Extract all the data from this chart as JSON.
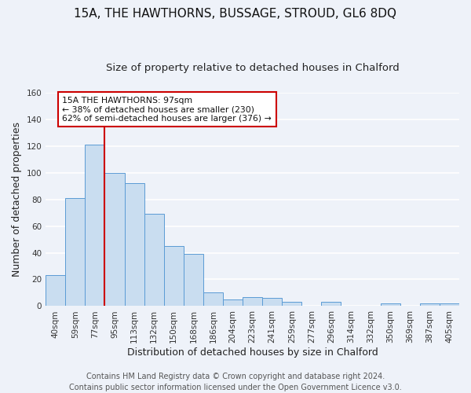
{
  "title": "15A, THE HAWTHORNS, BUSSAGE, STROUD, GL6 8DQ",
  "subtitle": "Size of property relative to detached houses in Chalford",
  "xlabel": "Distribution of detached houses by size in Chalford",
  "ylabel": "Number of detached properties",
  "bar_labels": [
    "40sqm",
    "59sqm",
    "77sqm",
    "95sqm",
    "113sqm",
    "132sqm",
    "150sqm",
    "168sqm",
    "186sqm",
    "204sqm",
    "223sqm",
    "241sqm",
    "259sqm",
    "277sqm",
    "296sqm",
    "314sqm",
    "332sqm",
    "350sqm",
    "369sqm",
    "387sqm",
    "405sqm"
  ],
  "bar_values": [
    23,
    81,
    121,
    100,
    92,
    69,
    45,
    39,
    10,
    5,
    7,
    6,
    3,
    0,
    3,
    0,
    0,
    2,
    0,
    2,
    2
  ],
  "bar_color": "#c9ddf0",
  "bar_edge_color": "#5b9bd5",
  "annotation_text": "15A THE HAWTHORNS: 97sqm\n← 38% of detached houses are smaller (230)\n62% of semi-detached houses are larger (376) →",
  "annotation_box_color": "#ffffff",
  "annotation_box_edge": "#cc0000",
  "ylim": [
    0,
    160
  ],
  "yticks": [
    0,
    20,
    40,
    60,
    80,
    100,
    120,
    140,
    160
  ],
  "property_line_x": 2.5,
  "footer_line1": "Contains HM Land Registry data © Crown copyright and database right 2024.",
  "footer_line2": "Contains public sector information licensed under the Open Government Licence v3.0.",
  "background_color": "#eef2f9",
  "grid_color": "#ffffff",
  "title_fontsize": 11,
  "subtitle_fontsize": 9.5,
  "axis_label_fontsize": 9,
  "tick_fontsize": 7.5,
  "footer_fontsize": 7
}
